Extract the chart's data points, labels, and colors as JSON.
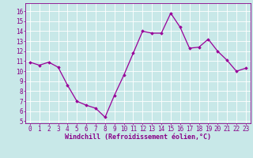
{
  "x": [
    0,
    1,
    2,
    3,
    4,
    5,
    6,
    7,
    8,
    9,
    10,
    11,
    12,
    13,
    14,
    15,
    16,
    17,
    18,
    19,
    20,
    21,
    22,
    23
  ],
  "y": [
    10.9,
    10.6,
    10.9,
    10.4,
    8.6,
    7.0,
    6.6,
    6.3,
    5.4,
    7.6,
    9.6,
    11.8,
    14.0,
    13.8,
    13.8,
    15.8,
    14.4,
    12.3,
    12.4,
    13.2,
    12.0,
    11.1,
    10.0,
    10.3
  ],
  "line_color": "#990099",
  "marker": "D",
  "marker_size": 1.8,
  "line_width": 0.9,
  "xlabel": "Windchill (Refroidissement éolien,°C)",
  "xlim": [
    -0.5,
    23.5
  ],
  "ylim": [
    4.8,
    16.8
  ],
  "yticks": [
    5,
    6,
    7,
    8,
    9,
    10,
    11,
    12,
    13,
    14,
    15,
    16
  ],
  "xticks": [
    0,
    1,
    2,
    3,
    4,
    5,
    6,
    7,
    8,
    9,
    10,
    11,
    12,
    13,
    14,
    15,
    16,
    17,
    18,
    19,
    20,
    21,
    22,
    23
  ],
  "bg_color": "#c8e8e8",
  "grid_color": "#ffffff",
  "tick_color": "#880088",
  "label_color": "#880088",
  "font_size": 5.5,
  "xlabel_fontsize": 6.0
}
